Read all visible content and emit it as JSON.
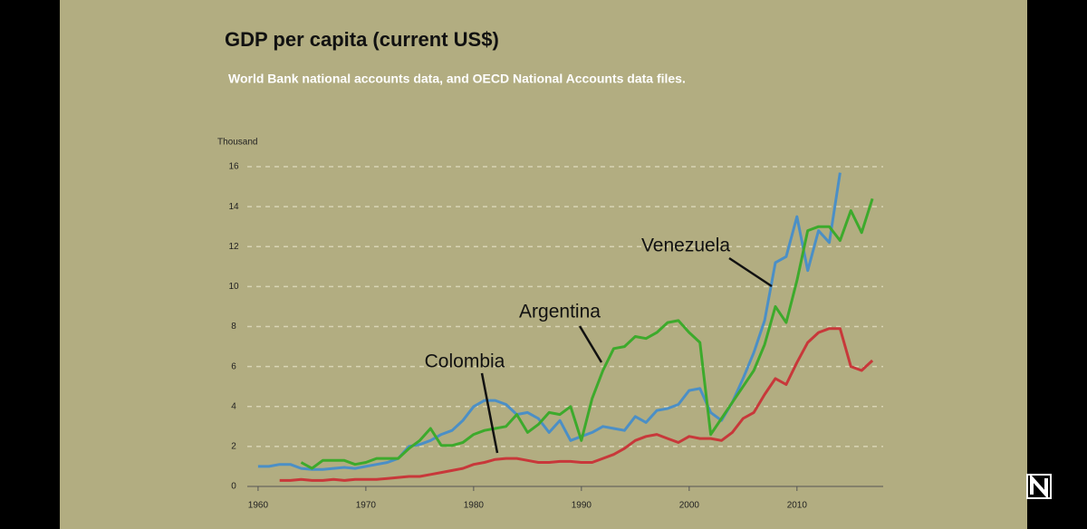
{
  "chart_data": {
    "type": "line",
    "title": "GDP per capita (current US$)",
    "subtitle": "World Bank national accounts data, and OECD National Accounts data files.",
    "y_axis_label": "Thousand",
    "x": [
      1960,
      1961,
      1962,
      1963,
      1964,
      1965,
      1966,
      1967,
      1968,
      1969,
      1970,
      1971,
      1972,
      1973,
      1974,
      1975,
      1976,
      1977,
      1978,
      1979,
      1980,
      1981,
      1982,
      1983,
      1984,
      1985,
      1986,
      1987,
      1988,
      1989,
      1990,
      1991,
      1992,
      1993,
      1994,
      1995,
      1996,
      1997,
      1998,
      1999,
      2000,
      2001,
      2002,
      2003,
      2004,
      2005,
      2006,
      2007,
      2008,
      2009,
      2010,
      2011,
      2012,
      2013,
      2014,
      2015,
      2016,
      2017
    ],
    "series": [
      {
        "name": "Venezuela",
        "color": "#4b8fc6",
        "values": [
          1.0,
          1.0,
          1.1,
          1.1,
          0.9,
          0.85,
          0.85,
          0.9,
          0.95,
          0.9,
          1.0,
          1.1,
          1.2,
          1.4,
          2.0,
          2.1,
          2.3,
          2.6,
          2.8,
          3.3,
          4.0,
          4.3,
          4.3,
          4.1,
          3.6,
          3.7,
          3.4,
          2.7,
          3.3,
          2.3,
          2.5,
          2.7,
          3.0,
          2.9,
          2.8,
          3.5,
          3.2,
          3.8,
          3.9,
          4.1,
          4.8,
          4.9,
          3.7,
          3.3,
          4.2,
          5.4,
          6.7,
          8.3,
          11.2,
          11.5,
          13.5,
          10.8,
          12.8,
          12.2,
          15.7,
          null,
          null,
          null
        ]
      },
      {
        "name": "Argentina",
        "color": "#3daa2c",
        "values": [
          null,
          null,
          null,
          null,
          1.2,
          0.9,
          1.3,
          1.3,
          1.3,
          1.1,
          1.2,
          1.4,
          1.4,
          1.4,
          1.9,
          2.3,
          2.9,
          2.05,
          2.05,
          2.2,
          2.6,
          2.8,
          2.9,
          3.0,
          3.6,
          2.7,
          3.1,
          3.7,
          3.6,
          4.0,
          2.3,
          4.4,
          5.8,
          6.9,
          7.0,
          7.5,
          7.4,
          7.7,
          8.2,
          8.3,
          7.7,
          7.2,
          2.6,
          3.4,
          4.2,
          5.0,
          5.8,
          7.1,
          9.0,
          8.2,
          10.3,
          12.8,
          13.0,
          13.0,
          12.3,
          13.8,
          12.7,
          14.4
        ]
      },
      {
        "name": "Colombia",
        "color": "#c8383a",
        "values": [
          null,
          null,
          0.3,
          0.3,
          0.35,
          0.3,
          0.3,
          0.35,
          0.3,
          0.35,
          0.35,
          0.35,
          0.4,
          0.45,
          0.5,
          0.5,
          0.6,
          0.7,
          0.8,
          0.9,
          1.1,
          1.2,
          1.35,
          1.4,
          1.4,
          1.3,
          1.2,
          1.2,
          1.25,
          1.25,
          1.2,
          1.2,
          1.4,
          1.6,
          1.9,
          2.3,
          2.5,
          2.6,
          2.4,
          2.2,
          2.5,
          2.4,
          2.4,
          2.3,
          2.7,
          3.4,
          3.7,
          4.6,
          5.4,
          5.1,
          6.2,
          7.2,
          7.7,
          7.9,
          7.9,
          6.0,
          5.8,
          6.3
        ]
      }
    ],
    "xlim": [
      1959,
      2018
    ],
    "xticks": [
      1960,
      1970,
      1980,
      1990,
      2000,
      2010
    ],
    "ylim": [
      0,
      16
    ],
    "yticks": [
      0,
      2,
      4,
      6,
      8,
      10,
      12,
      14,
      16
    ],
    "grid": true
  }
}
